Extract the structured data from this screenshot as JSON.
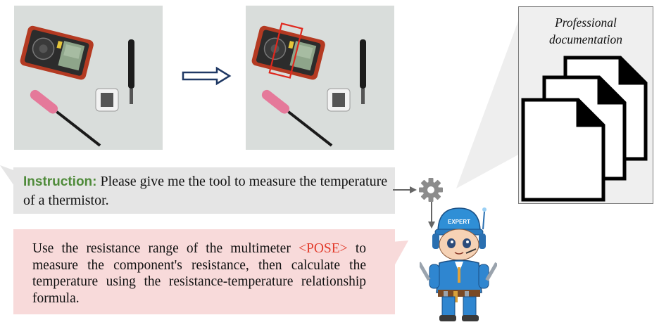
{
  "instruction": {
    "label": "Instruction:",
    "text": " Please give me the tool to measure the temperature of a thermistor."
  },
  "response": {
    "text_before": "Use the resistance range of the multimeter ",
    "token": "<POSE>",
    "text_after": " to measure the component's resistance, then calculate the temperature using the resistance-temperature relationship formula."
  },
  "documentation": {
    "title": "Professional documentation"
  },
  "expert": {
    "badge": "EXPERT"
  },
  "colors": {
    "instruction_label": "#4f8b3a",
    "pose_token": "#e23a2a",
    "instruction_bg": "#e5e5e5",
    "response_bg": "#f8dada",
    "highlight_box": "#e0281e",
    "arrow": "#1f3864"
  }
}
